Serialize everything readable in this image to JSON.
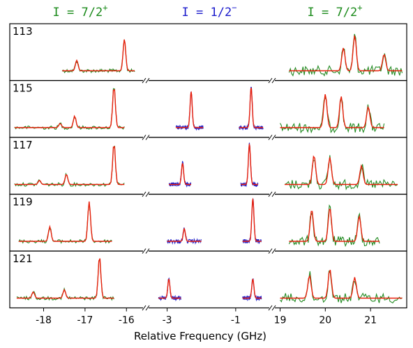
{
  "chart_data": {
    "type": "line",
    "title": "",
    "headers": [
      {
        "label": "I = 7/2",
        "superscript": "+",
        "color": "#1a8a1a"
      },
      {
        "label": "I = 1/2",
        "superscript": "−",
        "color": "#1a1acc"
      },
      {
        "label": "I = 7/2",
        "superscript": "+",
        "color": "#1a8a1a"
      }
    ],
    "xlabel": "Relative Frequency (GHz)",
    "ylabel": "",
    "x_axis_segments": [
      {
        "range": [
          -18.8,
          -15.6
        ],
        "ticks": [
          "-18",
          "-17",
          "-16"
        ],
        "tick_values": [
          -18,
          -17,
          -16
        ]
      },
      {
        "range": [
          -3.5,
          0.0
        ],
        "ticks": [
          "-3",
          "-1"
        ],
        "tick_values": [
          -3,
          -1
        ]
      },
      {
        "range": [
          18.9,
          21.8
        ],
        "ticks": [
          "19",
          "20",
          "21"
        ],
        "tick_values": [
          19,
          20,
          21
        ]
      }
    ],
    "colors": {
      "data": "#228b22",
      "data_mid": "#2222cc",
      "fit": "#e8200c"
    },
    "panels": [
      {
        "label": "113",
        "left_peaks": [
          [
            -17.2,
            0.25
          ],
          [
            -16.05,
            0.75
          ]
        ],
        "left_range": [
          -17.55,
          -15.8
        ],
        "mid_peaks": [],
        "mid_range": [],
        "right_peaks": [
          [
            20.4,
            0.55
          ],
          [
            20.65,
            0.85
          ],
          [
            21.3,
            0.4
          ]
        ],
        "right_range": [
          19.2,
          21.7
        ]
      },
      {
        "label": "115",
        "left_peaks": [
          [
            -17.6,
            0.1
          ],
          [
            -17.25,
            0.28
          ],
          [
            -16.3,
            1.0
          ]
        ],
        "left_range": [
          -18.7,
          -16.05
        ],
        "mid_peaks": [
          [
            -2.3,
            0.85
          ],
          [
            -0.55,
            0.95
          ]
        ],
        "mid_range": [
          [
            -2.75,
            -1.95
          ],
          [
            -0.9,
            -0.2
          ]
        ],
        "right_peaks": [
          [
            20.0,
            0.8
          ],
          [
            20.35,
            0.75
          ],
          [
            20.95,
            0.5
          ]
        ],
        "right_range": [
          19.0,
          21.3
        ]
      },
      {
        "label": "117",
        "left_peaks": [
          [
            -18.1,
            0.1
          ],
          [
            -17.45,
            0.25
          ],
          [
            -16.3,
            1.0
          ]
        ],
        "left_range": [
          -18.7,
          -16.05
        ],
        "mid_peaks": [
          [
            -2.55,
            0.5
          ],
          [
            -0.6,
            0.95
          ]
        ],
        "mid_range": [
          [
            -2.95,
            -2.3
          ],
          [
            -0.85,
            -0.35
          ]
        ],
        "right_peaks": [
          [
            19.75,
            0.7
          ],
          [
            20.1,
            0.65
          ],
          [
            20.8,
            0.45
          ]
        ],
        "right_range": [
          19.1,
          21.6
        ]
      },
      {
        "label": "119",
        "left_peaks": [
          [
            -17.85,
            0.35
          ],
          [
            -16.9,
            0.95
          ]
        ],
        "left_range": [
          -18.6,
          -16.35
        ],
        "mid_peaks": [
          [
            -2.5,
            0.3
          ],
          [
            -0.5,
            1.0
          ]
        ],
        "mid_range": [
          [
            -3.0,
            -2.0
          ],
          [
            -0.8,
            -0.25
          ]
        ],
        "right_peaks": [
          [
            19.7,
            0.75
          ],
          [
            20.1,
            0.8
          ],
          [
            20.75,
            0.6
          ]
        ],
        "right_range": [
          19.2,
          21.2
        ]
      },
      {
        "label": "121",
        "left_peaks": [
          [
            -18.25,
            0.15
          ],
          [
            -17.5,
            0.2
          ],
          [
            -16.65,
            1.0
          ]
        ],
        "left_range": [
          -18.65,
          -16.3
        ],
        "mid_peaks": [
          [
            -2.95,
            0.45
          ],
          [
            -0.5,
            0.45
          ]
        ],
        "mid_range": [
          [
            -3.25,
            -2.6
          ],
          [
            -0.8,
            -0.25
          ]
        ],
        "right_peaks": [
          [
            19.65,
            0.55
          ],
          [
            20.1,
            0.7
          ],
          [
            20.65,
            0.5
          ]
        ],
        "right_range": [
          19.0,
          21.7
        ]
      }
    ],
    "grid": false,
    "legend": "none"
  }
}
